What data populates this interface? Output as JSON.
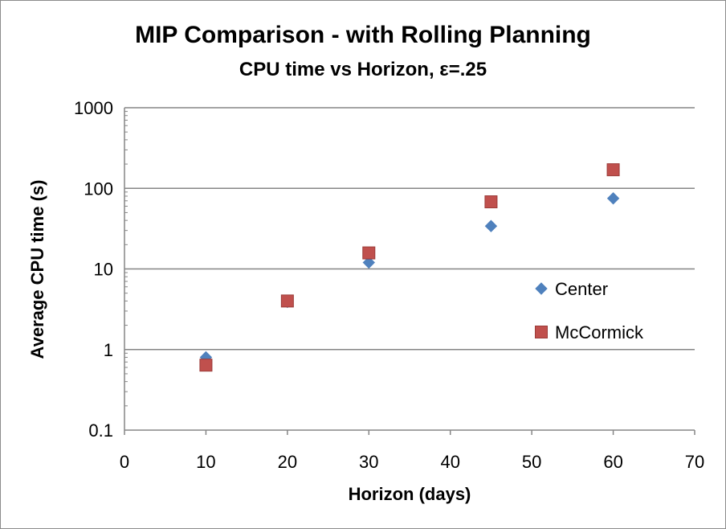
{
  "chart_data": {
    "type": "scatter",
    "title": "MIP Comparison - with Rolling Planning",
    "subtitle": "CPU time vs Horizon, ε=.25",
    "xlabel": "Horizon (days)",
    "ylabel": "Average CPU time (s)",
    "x_scale": "linear",
    "y_scale": "log",
    "xlim": [
      0,
      70
    ],
    "ylim": [
      0.1,
      1000
    ],
    "x_ticks": [
      "0",
      "10",
      "20",
      "30",
      "40",
      "50",
      "60",
      "70"
    ],
    "x_tick_values": [
      0,
      10,
      20,
      30,
      40,
      50,
      60,
      70
    ],
    "y_ticks": [
      "0.1",
      "1",
      "10",
      "100",
      "1000"
    ],
    "y_tick_values": [
      0.1,
      1,
      10,
      100,
      1000
    ],
    "grid": "horizontal major gridlines",
    "legend_position": "right",
    "series": [
      {
        "name": "Center",
        "marker": "diamond",
        "color": "#4f81bd",
        "x": [
          10,
          20,
          30,
          45,
          60
        ],
        "y": [
          0.8,
          3.9,
          12,
          34,
          75
        ]
      },
      {
        "name": "McCormick",
        "marker": "square",
        "color": "#c0504d",
        "x": [
          10,
          20,
          30,
          45,
          60
        ],
        "y": [
          0.64,
          4.0,
          15.8,
          68,
          170
        ]
      }
    ]
  }
}
